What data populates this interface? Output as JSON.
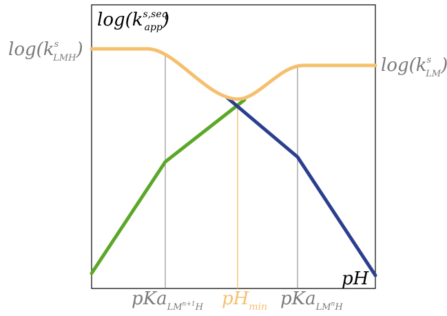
{
  "labels": {
    "y_axis": {
      "main": "log(k",
      "sup": "s,seq",
      "sub": "app",
      "close": ")"
    },
    "left_plateau": {
      "main": "log(k",
      "sup": "s",
      "sub": "LMH",
      "close": ")"
    },
    "right_plateau": {
      "main": "log(k",
      "sup": "s",
      "sub": "LM",
      "close": ")"
    },
    "x_axis": "pH",
    "pka1": {
      "main": "pKa",
      "sub": "LM",
      "subsup": "n+1",
      "subtail": "H"
    },
    "phmin": {
      "main": "pH",
      "sub": "min"
    },
    "pka2": {
      "main": "pKa",
      "sub": "LM",
      "subsup": "n",
      "subtail": "H"
    }
  },
  "colors": {
    "orange": "#F5C06E",
    "green": "#5BA829",
    "blue": "#2B3F8F",
    "guide": "#808080",
    "text_gray": "#7A7A7A",
    "black": "#000000"
  }
}
